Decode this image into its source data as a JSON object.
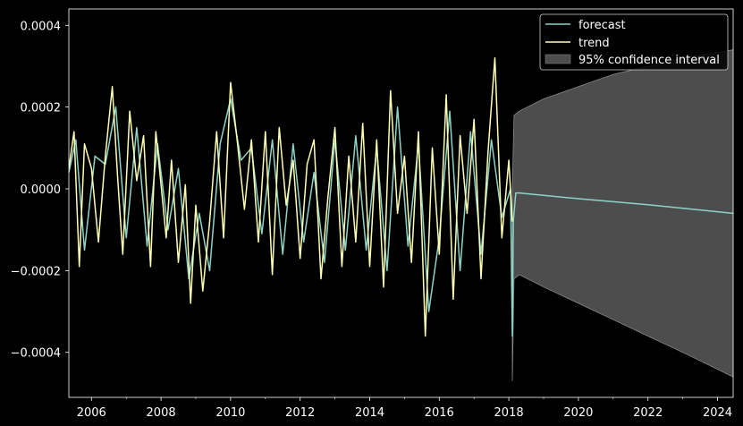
{
  "chart_data": {
    "type": "line",
    "title": "",
    "xlabel": "",
    "ylabel": "",
    "xlim": [
      2005.35,
      2024.45
    ],
    "ylim": [
      -0.00051,
      0.00044
    ],
    "x_ticks": [
      2006,
      2008,
      2010,
      2012,
      2014,
      2016,
      2018,
      2020,
      2022,
      2024
    ],
    "x_tick_labels": [
      "2006",
      "2008",
      "2010",
      "2012",
      "2014",
      "2016",
      "2018",
      "2020",
      "2022",
      "2024"
    ],
    "y_ticks": [
      -0.0004,
      -0.0002,
      0.0,
      0.0002,
      0.0004
    ],
    "y_tick_labels": [
      "−0.0004",
      "−0.0002",
      "0.0000",
      "0.0002",
      "0.0004"
    ],
    "grid": false,
    "legend": {
      "position": "top-right",
      "entries": [
        "forecast",
        "trend",
        "95% confidence interval"
      ]
    },
    "colors": {
      "background": "#000000",
      "axes": "#ffffff",
      "forecast": "#8dd3c7",
      "trend": "#feffb3",
      "ci_fill": "#4d4d4d",
      "ci_edge": "#8a8a8a"
    },
    "series": [
      {
        "name": "trend",
        "x": [
          2005.35,
          2005.5,
          2005.65,
          2005.8,
          2006.0,
          2006.2,
          2006.4,
          2006.6,
          2006.75,
          2006.9,
          2007.1,
          2007.3,
          2007.5,
          2007.7,
          2007.85,
          2008.0,
          2008.15,
          2008.3,
          2008.5,
          2008.7,
          2008.85,
          2009.0,
          2009.2,
          2009.4,
          2009.6,
          2009.8,
          2010.0,
          2010.2,
          2010.4,
          2010.6,
          2010.8,
          2011.0,
          2011.2,
          2011.4,
          2011.6,
          2011.8,
          2012.0,
          2012.2,
          2012.4,
          2012.6,
          2012.8,
          2013.0,
          2013.2,
          2013.4,
          2013.6,
          2013.8,
          2014.0,
          2014.2,
          2014.4,
          2014.6,
          2014.8,
          2015.0,
          2015.2,
          2015.4,
          2015.6,
          2015.8,
          2016.0,
          2016.2,
          2016.4,
          2016.6,
          2016.8,
          2017.0,
          2017.2,
          2017.4,
          2017.6,
          2017.8,
          2018.0,
          2018.1
        ],
        "y": [
          5e-05,
          0.00014,
          -0.00019,
          0.00011,
          5e-05,
          -0.00013,
          8e-05,
          0.00025,
          3e-05,
          -0.00016,
          0.00019,
          2e-05,
          0.00013,
          -0.00019,
          0.00014,
          1e-05,
          -0.00012,
          7e-05,
          -0.00018,
          1e-05,
          -0.00028,
          -4e-05,
          -0.00025,
          -8e-05,
          0.00014,
          -0.00012,
          0.00026,
          0.00011,
          -5e-05,
          0.00012,
          -0.00013,
          0.00014,
          -0.00021,
          0.00015,
          -4e-05,
          7e-05,
          -0.00017,
          6e-05,
          0.00012,
          -0.00022,
          -2e-05,
          0.00015,
          -0.00019,
          8e-05,
          -0.00013,
          0.00016,
          -0.00019,
          0.00012,
          -0.00024,
          0.00024,
          -6e-05,
          8e-05,
          -0.00018,
          0.00014,
          -0.00036,
          0.0001,
          -0.00016,
          0.00023,
          -0.00027,
          0.00013,
          -6e-05,
          0.00017,
          -0.00022,
          9e-05,
          0.00032,
          -0.00012,
          7e-05,
          -8e-05
        ]
      },
      {
        "name": "forecast",
        "x": [
          2005.35,
          2005.55,
          2005.8,
          2006.1,
          2006.4,
          2006.7,
          2007.0,
          2007.3,
          2007.6,
          2007.9,
          2008.2,
          2008.5,
          2008.8,
          2009.1,
          2009.4,
          2009.7,
          2010.0,
          2010.3,
          2010.6,
          2010.9,
          2011.2,
          2011.5,
          2011.8,
          2012.1,
          2012.4,
          2012.7,
          2013.0,
          2013.3,
          2013.6,
          2013.9,
          2014.2,
          2014.5,
          2014.8,
          2015.1,
          2015.4,
          2015.7,
          2016.0,
          2016.3,
          2016.6,
          2016.9,
          2017.2,
          2017.5,
          2017.8,
          2018.05,
          2018.1,
          2018.13,
          2018.2,
          2018.3,
          2020.0,
          2022.0,
          2024.45
        ],
        "y": [
          4e-05,
          0.00012,
          -0.00015,
          8e-05,
          6e-05,
          0.0002,
          -0.00012,
          0.00015,
          -0.00014,
          0.00011,
          -0.0001,
          5e-05,
          -0.00022,
          -6e-05,
          -0.0002,
          0.00011,
          0.00022,
          7e-05,
          0.0001,
          -0.00011,
          0.00012,
          -0.00016,
          0.00011,
          -0.00013,
          4e-05,
          -0.00018,
          0.00012,
          -0.00015,
          0.00013,
          -0.00015,
          0.0001,
          -0.0002,
          0.0002,
          -0.00014,
          0.00011,
          -0.0003,
          -0.00012,
          0.00019,
          -0.0002,
          0.00014,
          -0.00016,
          0.00012,
          -7e-05,
          0.0,
          -0.00036,
          -8e-05,
          -1e-05,
          -1e-05,
          -2.4e-05,
          -3.9e-05,
          -6e-05
        ]
      }
    ],
    "confidence_interval": {
      "name": "95% confidence interval",
      "x": [
        2018.1,
        2018.15,
        2018.3,
        2019.0,
        2020.0,
        2021.0,
        2022.0,
        2023.0,
        2024.45
      ],
      "upper": [
        0.0,
        0.00018,
        0.00019,
        0.00022,
        0.00025,
        0.00028,
        0.0003,
        0.00032,
        0.00034
      ],
      "lower": [
        -0.00047,
        -0.00022,
        -0.00021,
        -0.00024,
        -0.00028,
        -0.00032,
        -0.00036,
        -0.0004,
        -0.00046
      ]
    }
  }
}
